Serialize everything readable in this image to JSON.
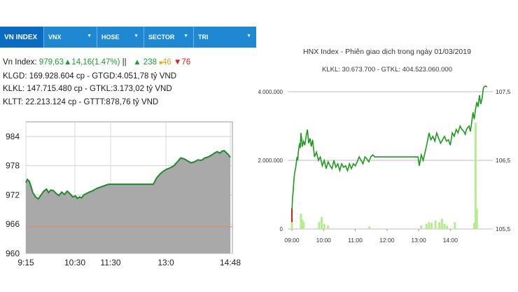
{
  "left": {
    "tabs": [
      {
        "label": "VN INDEX",
        "dropdown": false,
        "active": true
      },
      {
        "label": "VNX",
        "dropdown": true,
        "active": false
      },
      {
        "label": "HOSE",
        "dropdown": true,
        "active": false
      },
      {
        "label": "SECTOR",
        "dropdown": true,
        "active": false
      },
      {
        "label": "TRI",
        "dropdown": true,
        "active": false
      }
    ],
    "caret": "▼",
    "info": {
      "index_label": "Vn Index:",
      "index_value": "979,63",
      "change_arrow": "▲",
      "change_value": "14,16(1.47%)",
      "separator": "||",
      "up_arrow": "▲",
      "up_count": "238",
      "flat_symbol": "■",
      "flat_count": "46",
      "down_arrow": "▼",
      "down_count": "76",
      "klgd": "KLGD: 169.928.604 cp - GTGD:4.051,78 tỷ VND",
      "klkl": "KLKL: 147.715.480 cp - GTKL:3.173,02 tỷ VND",
      "kltt": "KLTT: 22.213.124 cp - GTTT:878,76 tỷ VND"
    },
    "colors": {
      "tab_bg": "#1e88d3",
      "tab_active": "#0a6cc0",
      "line": "#1f8a2b",
      "fill": "#a9a9a9",
      "ref_line": "#d98b5a"
    }
  },
  "right": {
    "title": "HNX Index - Phiên giao dịch trong ngày 01/03/2019",
    "subtitle": "KLKL: 30.673.700 - GTKL: 404.523.060.000",
    "colors": {
      "line": "#1c9a1c",
      "volume": "#b5ec8f",
      "open_tick": "#d62020"
    }
  },
  "chart_data": [
    {
      "type": "area",
      "x_ticks": [
        "9:15",
        "10:30",
        "11:30",
        "13:0",
        "14:48"
      ],
      "y_ticks": [
        "984",
        "978",
        "972",
        "966",
        "960"
      ],
      "ylim": [
        960,
        987
      ],
      "reference_value": 965.5,
      "x": [
        0,
        2,
        5,
        8,
        10,
        14,
        18,
        22,
        26,
        30,
        33,
        36,
        40,
        44,
        48,
        52,
        56,
        60,
        64,
        68,
        72,
        75,
        78,
        81,
        84,
        88,
        92,
        96,
        100,
        104,
        108,
        112,
        116,
        120,
        126,
        135,
        150,
        170,
        185,
        190,
        195,
        200,
        205,
        210,
        215,
        220,
        225,
        230,
        235,
        240,
        245,
        250,
        255,
        260,
        265,
        270,
        274,
        278,
        282,
        285,
        288,
        291,
        294,
        297
      ],
      "values": [
        974.5,
        975.2,
        974.8,
        973.5,
        972.5,
        971.6,
        971.2,
        972.0,
        972.8,
        973.2,
        972.5,
        973.0,
        972.9,
        972.3,
        971.9,
        972.6,
        972.1,
        972.8,
        972.3,
        971.6,
        971.8,
        971.3,
        971.6,
        971.4,
        972.0,
        972.3,
        972.6,
        972.8,
        973.1,
        973.4,
        973.6,
        973.8,
        974.0,
        974.2,
        974.2,
        974.2,
        974.2,
        974.2,
        974.2,
        975.5,
        976.3,
        976.9,
        977.3,
        977.6,
        978.0,
        978.8,
        979.6,
        979.4,
        979.0,
        978.6,
        978.8,
        979.2,
        979.1,
        979.6,
        979.8,
        980.2,
        980.6,
        980.9,
        980.6,
        981.0,
        981.1,
        980.7,
        980.3,
        979.7
      ]
    },
    {
      "type": "line",
      "title": "HNX Index - Phiên giao dịch trong ngày 01/03/2019",
      "x_ticks": [
        "09:00",
        "10:00",
        "11:00",
        "12:00",
        "13:00",
        "14:00"
      ],
      "y_left_ticks": [
        "4.000.000",
        "2.000.000",
        "0"
      ],
      "y_right_ticks": [
        "107,5",
        "106,5",
        "105,5"
      ],
      "y_left_lim": [
        0,
        4000000
      ],
      "y_right_lim": [
        105.5,
        107.5
      ],
      "price_x": [
        0,
        1,
        2,
        3,
        4,
        5,
        6,
        7,
        8,
        9,
        10,
        11,
        12,
        13,
        14,
        15,
        16,
        18,
        20,
        22,
        24,
        26,
        28,
        30,
        32,
        35,
        38,
        41,
        44,
        47,
        50,
        53,
        56,
        59,
        62,
        65,
        68,
        71,
        74,
        77,
        80,
        83,
        86,
        89,
        92,
        95,
        98,
        101,
        104,
        107,
        110,
        113,
        116,
        119,
        122,
        125,
        128,
        140,
        160,
        180,
        195,
        197,
        200,
        203,
        206,
        209,
        212,
        215,
        218,
        221,
        224,
        227,
        230,
        233,
        236,
        239,
        242,
        245,
        248,
        251,
        254,
        257,
        260,
        263,
        266,
        268,
        270,
        272,
        274,
        276,
        278,
        280,
        282,
        284,
        286,
        288,
        290,
        292,
        294,
        296,
        298,
        300,
        302
      ],
      "price": [
        105.75,
        105.95,
        106.05,
        106.2,
        106.3,
        106.35,
        106.4,
        106.48,
        106.55,
        106.5,
        106.62,
        106.7,
        106.75,
        106.68,
        106.9,
        106.82,
        106.7,
        106.78,
        106.72,
        106.85,
        106.95,
        106.75,
        106.82,
        106.7,
        106.8,
        106.55,
        106.62,
        106.5,
        106.55,
        106.42,
        106.5,
        106.38,
        106.48,
        106.42,
        106.38,
        106.5,
        106.4,
        106.45,
        106.35,
        106.45,
        106.4,
        106.42,
        106.35,
        106.45,
        106.38,
        106.45,
        106.42,
        106.48,
        106.55,
        106.5,
        106.45,
        106.55,
        106.52,
        106.48,
        106.55,
        106.58,
        106.55,
        106.55,
        106.55,
        106.55,
        106.55,
        106.42,
        106.58,
        106.5,
        106.62,
        106.75,
        106.9,
        106.8,
        106.85,
        106.78,
        106.9,
        106.82,
        106.75,
        106.8,
        106.85,
        106.78,
        106.8,
        106.72,
        106.9,
        106.85,
        106.95,
        106.9,
        107.0,
        106.95,
        106.92,
        106.88,
        106.95,
        106.98,
        107.0,
        106.92,
        107.05,
        107.2,
        107.1,
        107.25,
        107.35,
        107.28,
        107.45,
        107.32,
        107.4,
        107.55,
        107.58,
        107.58,
        107.57
      ],
      "volume_x": [
        0,
        14,
        16,
        18,
        42,
        46,
        50,
        56,
        120,
        200,
        208,
        212,
        216,
        222,
        228,
        232,
        236,
        240,
        252,
        282,
        284,
        286
      ],
      "volume": [
        300000,
        450000,
        280000,
        200000,
        200000,
        350000,
        150000,
        100000,
        80000,
        100000,
        150000,
        200000,
        180000,
        250000,
        200000,
        300000,
        150000,
        100000,
        200000,
        180000,
        3100000,
        600000
      ]
    }
  ]
}
